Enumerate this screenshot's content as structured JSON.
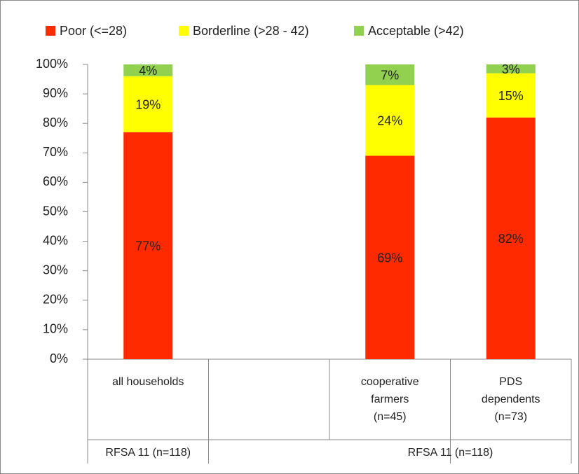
{
  "chart_data": {
    "type": "stacked-bar",
    "categories": [
      [
        "all households"
      ],
      null,
      [
        "cooperative",
        "farmers",
        "(n=45)"
      ],
      [
        "PDS",
        "dependents",
        "(n=73)"
      ]
    ],
    "groups": [
      "RFSA 11 (n=118)",
      "RFSA 11 (n=118)"
    ],
    "series": [
      {
        "name": "Poor (<=28)",
        "color": "#ff2a00",
        "values": [
          77,
          null,
          69,
          82
        ],
        "value_labels": [
          "77%",
          null,
          "69%",
          "82%"
        ]
      },
      {
        "name": "Borderline (>28 - 42)",
        "color": "#ffff00",
        "values": [
          19,
          null,
          24,
          15
        ],
        "value_labels": [
          "19%",
          null,
          "24%",
          "15%"
        ]
      },
      {
        "name": "Acceptable (>42)",
        "color": "#92d050",
        "values": [
          4,
          null,
          7,
          3
        ],
        "value_labels": [
          "4%",
          null,
          "7%",
          "3%"
        ]
      }
    ],
    "ylim": [
      0,
      100
    ],
    "yticks": [
      {
        "value": 0,
        "label": "0%"
      },
      {
        "value": 10,
        "label": "10%"
      },
      {
        "value": 20,
        "label": "20%"
      },
      {
        "value": 30,
        "label": "30%"
      },
      {
        "value": 40,
        "label": "40%"
      },
      {
        "value": 50,
        "label": "50%"
      },
      {
        "value": 60,
        "label": "60%"
      },
      {
        "value": 70,
        "label": "70%"
      },
      {
        "value": 80,
        "label": "80%"
      },
      {
        "value": 90,
        "label": "90%"
      },
      {
        "value": 100,
        "label": "100%"
      }
    ],
    "grid": false
  }
}
